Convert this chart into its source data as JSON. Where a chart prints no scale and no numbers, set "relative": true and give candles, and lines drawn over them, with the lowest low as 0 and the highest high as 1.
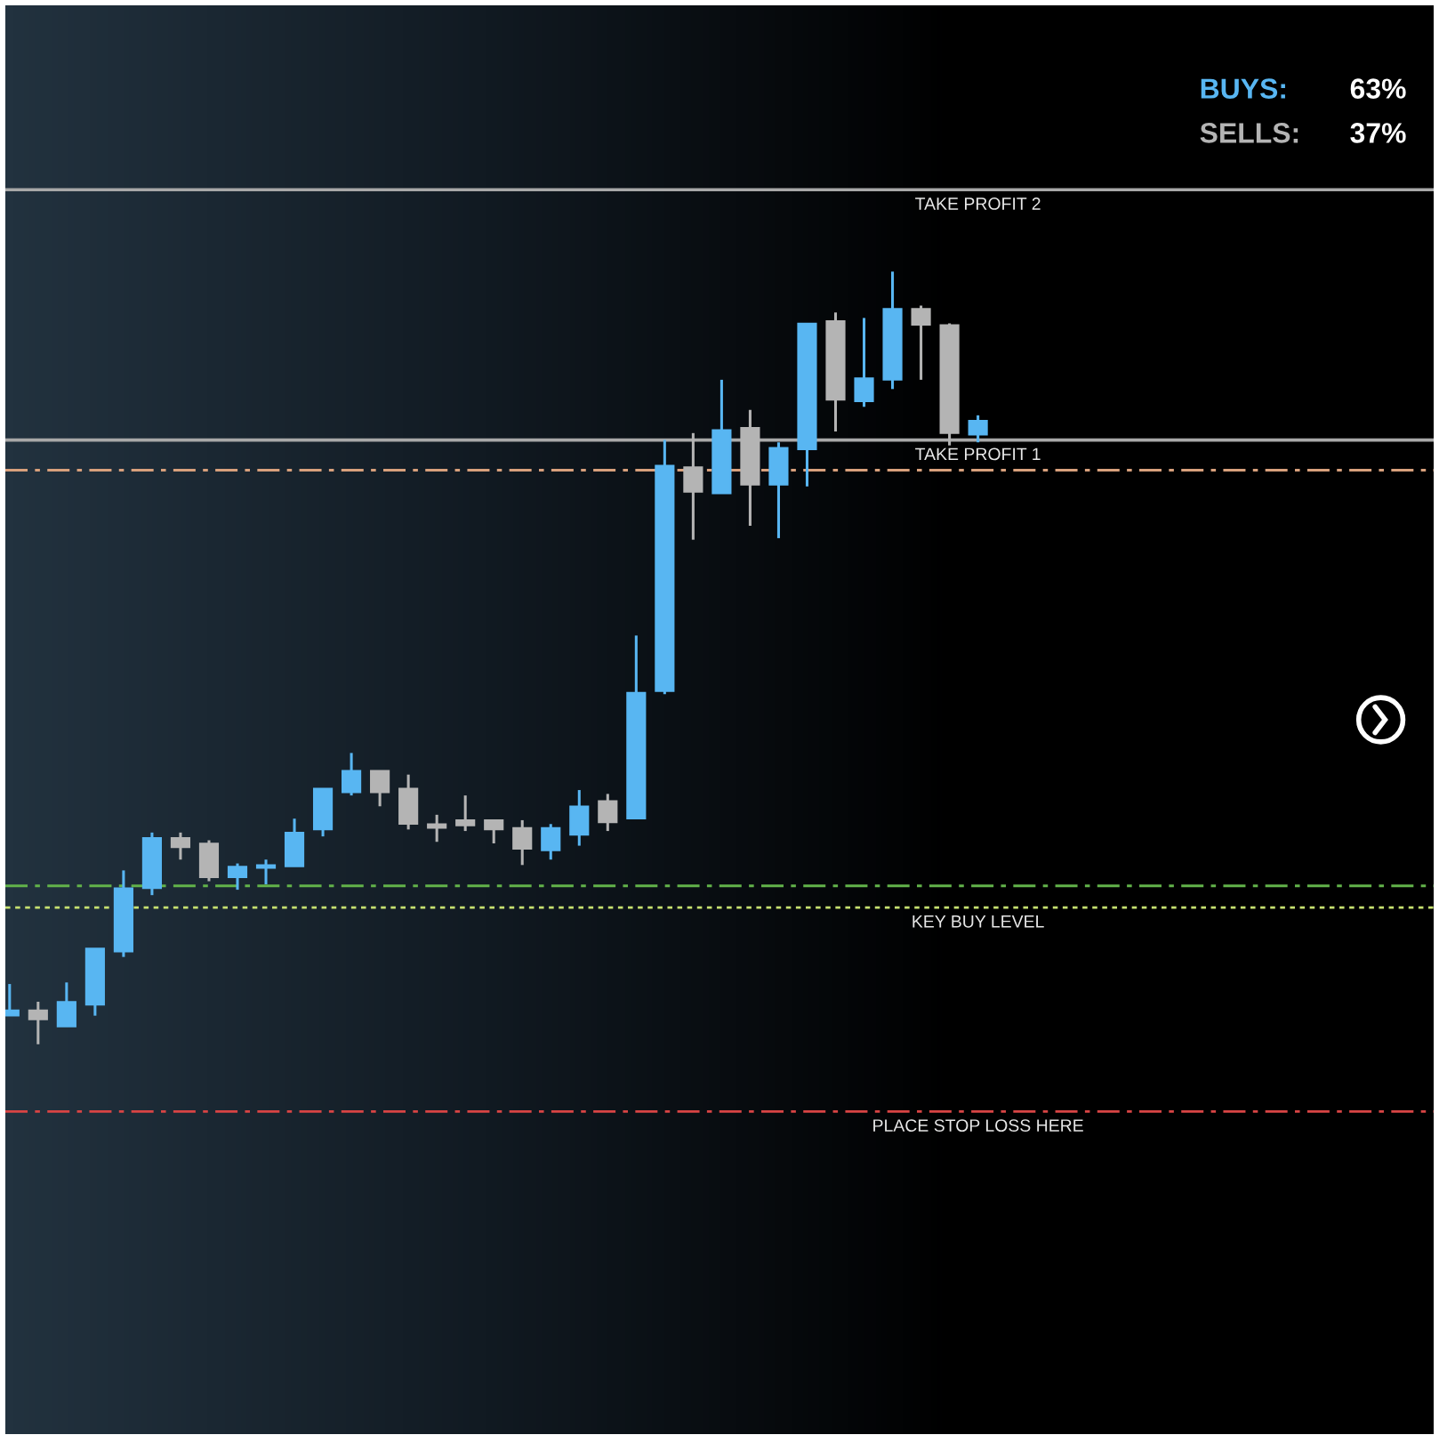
{
  "chart_data": {
    "type": "candlestick",
    "relative": true,
    "tick_labels": false,
    "categories": [
      null,
      null,
      null,
      null,
      null,
      null,
      null,
      null,
      null,
      null,
      null,
      null,
      null,
      null,
      null,
      null,
      null,
      null,
      null,
      null,
      null,
      null,
      null,
      null,
      null,
      null,
      null,
      null,
      null,
      null,
      null,
      null,
      null,
      null,
      null
    ],
    "ohlc": [
      [
        0.037,
        0.078,
        0.037,
        0.044
      ],
      [
        0.044,
        0.055,
        0.0,
        0.032
      ],
      [
        0.023,
        0.08,
        0.023,
        0.055
      ],
      [
        0.051,
        0.124,
        0.037,
        0.124
      ],
      [
        0.12,
        0.225,
        0.113,
        0.202
      ],
      [
        0.202,
        0.274,
        0.193,
        0.267
      ],
      [
        0.267,
        0.274,
        0.239,
        0.255
      ],
      [
        0.26,
        0.264,
        0.211,
        0.216
      ],
      [
        0.216,
        0.234,
        0.2,
        0.23
      ],
      [
        0.228,
        0.239,
        0.207,
        0.232
      ],
      [
        0.23,
        0.292,
        0.23,
        0.274
      ],
      [
        0.278,
        0.331,
        0.269,
        0.331
      ],
      [
        0.326,
        0.377,
        0.322,
        0.354
      ],
      [
        0.354,
        0.354,
        0.308,
        0.326
      ],
      [
        0.331,
        0.349,
        0.278,
        0.285
      ],
      [
        0.285,
        0.297,
        0.262,
        0.28
      ],
      [
        0.29,
        0.322,
        0.276,
        0.283
      ],
      [
        0.29,
        0.29,
        0.26,
        0.278
      ],
      [
        0.28,
        0.29,
        0.232,
        0.253
      ],
      [
        0.251,
        0.285,
        0.239,
        0.28
      ],
      [
        0.271,
        0.329,
        0.257,
        0.308
      ],
      [
        0.315,
        0.324,
        0.276,
        0.287
      ],
      [
        0.292,
        0.529,
        0.292,
        0.455
      ],
      [
        0.457,
        0.782,
        0.453,
        0.749
      ],
      [
        0.747,
        0.791,
        0.653,
        0.715
      ],
      [
        0.713,
        0.86,
        0.713,
        0.795
      ],
      [
        0.798,
        0.821,
        0.671,
        0.724
      ],
      [
        0.724,
        0.779,
        0.655,
        0.772
      ],
      [
        0.77,
        0.933,
        0.722,
        0.933
      ],
      [
        0.936,
        0.947,
        0.793,
        0.834
      ],
      [
        0.832,
        0.94,
        0.825,
        0.862
      ],
      [
        0.86,
        1.0,
        0.848,
        0.952
      ],
      [
        0.952,
        0.956,
        0.86,
        0.931
      ],
      [
        0.931,
        0.933,
        0.775,
        0.791
      ],
      [
        0.789,
        0.814,
        0.779,
        0.807
      ]
    ],
    "colors": [
      "#58b6f2",
      "#b4b4b4",
      "#58b6f2",
      "#58b6f2",
      "#58b6f2",
      "#58b6f2",
      "#b4b4b4",
      "#b4b4b4",
      "#58b6f2",
      "#58b6f2",
      "#58b6f2",
      "#58b6f2",
      "#58b6f2",
      "#b4b4b4",
      "#b4b4b4",
      "#b4b4b4",
      "#b4b4b4",
      "#b4b4b4",
      "#b4b4b4",
      "#58b6f2",
      "#58b6f2",
      "#b4b4b4",
      "#58b6f2",
      "#58b6f2",
      "#b4b4b4",
      "#58b6f2",
      "#b4b4b4",
      "#58b6f2",
      "#58b6f2",
      "#b4b4b4",
      "#58b6f2",
      "#58b6f2",
      "#b4b4b4",
      "#b4b4b4",
      "#58b6f2"
    ],
    "ref_lines": [
      {
        "axis": "y",
        "value": 1.106,
        "label": "TAKE PROFIT 2",
        "color": "#a8a8a8",
        "line_style": "solid"
      },
      {
        "axis": "y",
        "value": 0.782,
        "label": "TAKE PROFIT 1",
        "color": "#a8a8a8",
        "line_style": "solid"
      },
      {
        "axis": "y",
        "value": 0.743,
        "color": "#d8a07c",
        "line_style": "dashed"
      },
      {
        "axis": "y",
        "value": 0.205,
        "color": "#62b24a",
        "line_style": "dashed"
      },
      {
        "axis": "y",
        "value": 0.177,
        "label": "KEY BUY LEVEL",
        "color": "#c6e070",
        "line_style": "dotted"
      },
      {
        "axis": "y",
        "value": -0.087,
        "label": "PLACE STOP LOSS HERE",
        "color": "#d84444",
        "line_style": "dashed"
      }
    ],
    "annotations": [
      "BUYS:",
      "63%",
      "SELLS:",
      "37%"
    ]
  }
}
